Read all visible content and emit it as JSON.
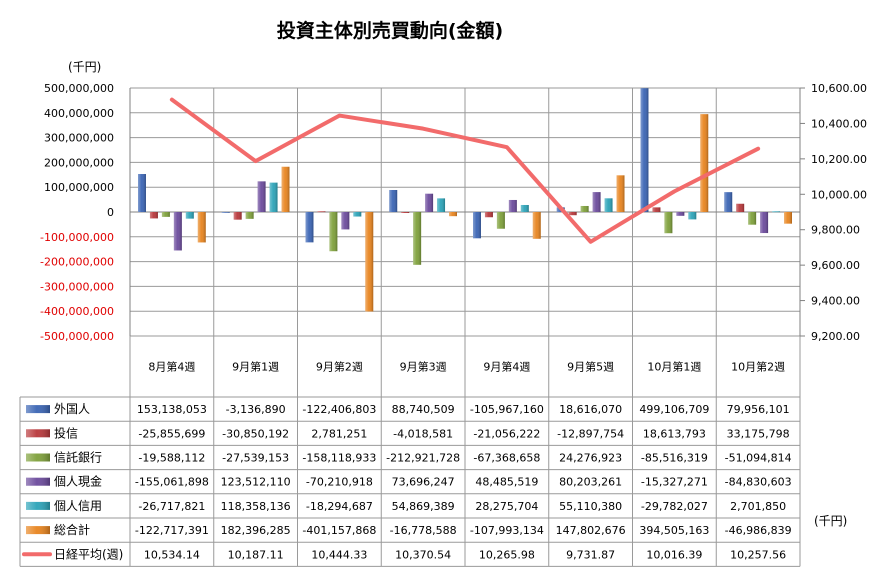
{
  "chart_data": {
    "type": "bar",
    "title": "投資主体別売買動向(金額)",
    "y_unit_left": "(千円)",
    "y_unit_table": "(千円)",
    "y_left": {
      "min": -500000000,
      "max": 500000000,
      "step": 100000000,
      "ticks": [
        "500,000,000",
        "400,000,000",
        "300,000,000",
        "200,000,000",
        "100,000,000",
        "0",
        "-100,000,000",
        "-200,000,000",
        "-300,000,000",
        "-400,000,000",
        "-500,000,000"
      ]
    },
    "y_right": {
      "min": 9200,
      "max": 10600,
      "step": 200,
      "ticks": [
        "10,600.00",
        "10,400.00",
        "10,200.00",
        "10,000.00",
        "9,800.00",
        "9,600.00",
        "9,400.00",
        "9,200.00"
      ]
    },
    "categories": [
      "8月第4週",
      "9月第1週",
      "9月第2週",
      "9月第3週",
      "9月第4週",
      "9月第5週",
      "10月第1週",
      "10月第2週"
    ],
    "series": [
      {
        "name": "外国人",
        "type": "bar",
        "axis": "left",
        "color": "#3a64b4",
        "values": [
          153138053,
          -3136890,
          -122406803,
          88740509,
          -105967160,
          18616070,
          499106709,
          79956101
        ],
        "display": [
          "153,138,053",
          "-3,136,890",
          "-122,406,803",
          "88,740,509",
          "-105,967,160",
          "18,616,070",
          "499,106,709",
          "79,956,101"
        ]
      },
      {
        "name": "投信",
        "type": "bar",
        "axis": "left",
        "color": "#b8373a",
        "values": [
          -25855699,
          -30850192,
          2781251,
          -4018581,
          -21056222,
          -12897754,
          18613793,
          33175798
        ],
        "display": [
          "-25,855,699",
          "-30,850,192",
          "2,781,251",
          "-4,018,581",
          "-21,056,222",
          "-12,897,754",
          "18,613,793",
          "33,175,798"
        ]
      },
      {
        "name": "信託銀行",
        "type": "bar",
        "axis": "left",
        "color": "#7ea03a",
        "values": [
          -19588112,
          -27539153,
          -158118933,
          -212921728,
          -67368658,
          24276923,
          -85516319,
          -51094814
        ],
        "display": [
          "-19,588,112",
          "-27,539,153",
          "-158,118,933",
          "-212,921,728",
          "-67,368,658",
          "24,276,923",
          "-85,516,319",
          "-51,094,814"
        ]
      },
      {
        "name": "個人現金",
        "type": "bar",
        "axis": "left",
        "color": "#6b4a9c",
        "values": [
          -155061898,
          123512110,
          -70210918,
          73696247,
          48485519,
          80203261,
          -15327271,
          -84830603
        ],
        "display": [
          "-155,061,898",
          "123,512,110",
          "-70,210,918",
          "73,696,247",
          "48,485,519",
          "80,203,261",
          "-15,327,271",
          "-84,830,603"
        ]
      },
      {
        "name": "個人信用",
        "type": "bar",
        "axis": "left",
        "color": "#2ba3b8",
        "values": [
          -26717821,
          118358136,
          -18294687,
          54869389,
          28275704,
          55110380,
          -29782027,
          2701850
        ],
        "display": [
          "-26,717,821",
          "118,358,136",
          "-18,294,687",
          "54,869,389",
          "28,275,704",
          "55,110,380",
          "-29,782,027",
          "2,701,850"
        ]
      },
      {
        "name": "総合計",
        "type": "bar",
        "axis": "left",
        "color": "#e8841e",
        "values": [
          -122717391,
          182396285,
          -401157868,
          -16778588,
          -107993134,
          147802676,
          394505163,
          -46986839
        ],
        "display": [
          "-122,717,391",
          "182,396,285",
          "-401,157,868",
          "-16,778,588",
          "-107,993,134",
          "147,802,676",
          "394,505,163",
          "-46,986,839"
        ]
      },
      {
        "name": "日経平均(週)",
        "type": "line",
        "axis": "right",
        "color": "#f26b6b",
        "values": [
          10534.14,
          10187.11,
          10444.33,
          10370.54,
          10265.98,
          9731.87,
          10016.39,
          10257.56
        ],
        "display": [
          "10,534.14",
          "10,187.11",
          "10,444.33",
          "10,370.54",
          "10,265.98",
          "9,731.87",
          "10,016.39",
          "10,257.56"
        ]
      }
    ],
    "grid": true,
    "legend": "table-below"
  }
}
